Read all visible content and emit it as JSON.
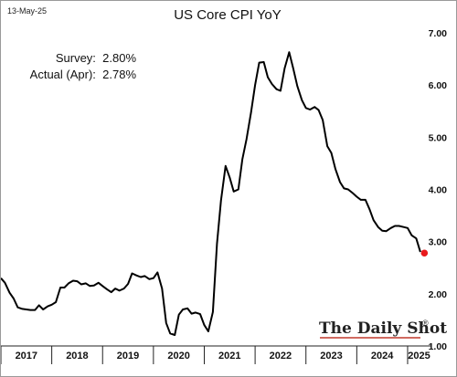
{
  "header": {
    "date": "13-May-25",
    "title": "US Core CPI YoY"
  },
  "annotations": {
    "survey": "Survey:  2.80%",
    "actual": "Actual (Apr):  2.78%"
  },
  "logo": {
    "text": "The Daily Shot",
    "mark": "®"
  },
  "colors": {
    "line": "#000000",
    "marker": "#e8191c",
    "logo_underline": "#c0392b"
  },
  "chart_data": {
    "type": "line",
    "title": "US Core CPI YoY",
    "xlabel": "",
    "ylabel": "",
    "ylim": [
      1.0,
      7.0
    ],
    "xlim": [
      2017.0,
      2025.45
    ],
    "grid": false,
    "y_axis_side": "right",
    "y_ticks": [
      "1.00",
      "2.00",
      "3.00",
      "4.00",
      "5.00",
      "6.00",
      "7.00"
    ],
    "x_ticks": [
      "2017",
      "2018",
      "2019",
      "2020",
      "2021",
      "2022",
      "2023",
      "2024",
      "2025"
    ],
    "series": [
      {
        "values": [
          [
            2017.0,
            2.3
          ],
          [
            2017.08,
            2.21
          ],
          [
            2017.17,
            2.02
          ],
          [
            2017.25,
            1.91
          ],
          [
            2017.33,
            1.74
          ],
          [
            2017.42,
            1.71
          ],
          [
            2017.5,
            1.7
          ],
          [
            2017.58,
            1.69
          ],
          [
            2017.67,
            1.69
          ],
          [
            2017.75,
            1.78
          ],
          [
            2017.83,
            1.7
          ],
          [
            2017.92,
            1.76
          ],
          [
            2018.0,
            1.79
          ],
          [
            2018.08,
            1.84
          ],
          [
            2018.17,
            2.12
          ],
          [
            2018.25,
            2.12
          ],
          [
            2018.33,
            2.2
          ],
          [
            2018.42,
            2.25
          ],
          [
            2018.5,
            2.24
          ],
          [
            2018.58,
            2.18
          ],
          [
            2018.67,
            2.2
          ],
          [
            2018.75,
            2.15
          ],
          [
            2018.83,
            2.16
          ],
          [
            2018.92,
            2.21
          ],
          [
            2019.0,
            2.15
          ],
          [
            2019.08,
            2.09
          ],
          [
            2019.17,
            2.03
          ],
          [
            2019.25,
            2.1
          ],
          [
            2019.33,
            2.06
          ],
          [
            2019.42,
            2.1
          ],
          [
            2019.5,
            2.19
          ],
          [
            2019.58,
            2.39
          ],
          [
            2019.67,
            2.35
          ],
          [
            2019.75,
            2.32
          ],
          [
            2019.83,
            2.34
          ],
          [
            2019.92,
            2.28
          ],
          [
            2020.0,
            2.3
          ],
          [
            2020.08,
            2.41
          ],
          [
            2020.17,
            2.1
          ],
          [
            2020.25,
            1.44
          ],
          [
            2020.33,
            1.24
          ],
          [
            2020.42,
            1.21
          ],
          [
            2020.5,
            1.6
          ],
          [
            2020.58,
            1.7
          ],
          [
            2020.67,
            1.72
          ],
          [
            2020.75,
            1.62
          ],
          [
            2020.83,
            1.64
          ],
          [
            2020.92,
            1.61
          ],
          [
            2021.0,
            1.4
          ],
          [
            2021.08,
            1.28
          ],
          [
            2021.17,
            1.65
          ],
          [
            2021.25,
            2.96
          ],
          [
            2021.33,
            3.79
          ],
          [
            2021.42,
            4.45
          ],
          [
            2021.5,
            4.23
          ],
          [
            2021.58,
            3.96
          ],
          [
            2021.67,
            4.0
          ],
          [
            2021.75,
            4.58
          ],
          [
            2021.83,
            4.96
          ],
          [
            2021.92,
            5.48
          ],
          [
            2022.0,
            6.0
          ],
          [
            2022.08,
            6.43
          ],
          [
            2022.17,
            6.44
          ],
          [
            2022.25,
            6.15
          ],
          [
            2022.33,
            6.02
          ],
          [
            2022.42,
            5.92
          ],
          [
            2022.5,
            5.89
          ],
          [
            2022.58,
            6.32
          ],
          [
            2022.67,
            6.63
          ],
          [
            2022.75,
            6.32
          ],
          [
            2022.83,
            5.98
          ],
          [
            2022.92,
            5.71
          ],
          [
            2023.0,
            5.56
          ],
          [
            2023.08,
            5.53
          ],
          [
            2023.17,
            5.58
          ],
          [
            2023.25,
            5.52
          ],
          [
            2023.33,
            5.33
          ],
          [
            2023.42,
            4.83
          ],
          [
            2023.5,
            4.7
          ],
          [
            2023.58,
            4.39
          ],
          [
            2023.67,
            4.14
          ],
          [
            2023.75,
            4.02
          ],
          [
            2023.83,
            4.0
          ],
          [
            2023.92,
            3.93
          ],
          [
            2024.0,
            3.86
          ],
          [
            2024.08,
            3.8
          ],
          [
            2024.17,
            3.8
          ],
          [
            2024.25,
            3.62
          ],
          [
            2024.33,
            3.41
          ],
          [
            2024.42,
            3.28
          ],
          [
            2024.5,
            3.21
          ],
          [
            2024.58,
            3.2
          ],
          [
            2024.67,
            3.26
          ],
          [
            2024.75,
            3.3
          ],
          [
            2024.83,
            3.3
          ],
          [
            2024.92,
            3.28
          ],
          [
            2025.0,
            3.26
          ],
          [
            2025.08,
            3.12
          ],
          [
            2025.17,
            3.06
          ],
          [
            2025.25,
            2.8
          ]
        ]
      }
    ],
    "markers": [
      {
        "x": 2025.33,
        "y": 2.78
      }
    ]
  }
}
